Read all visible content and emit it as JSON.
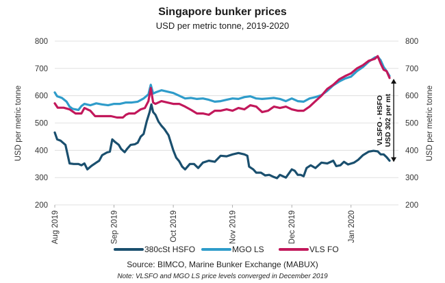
{
  "chart_data": {
    "type": "line",
    "title": "Singapore bunker prices",
    "subtitle": "USD per metric tonne, 2019-2020",
    "ylabel_left": "USD per metric tonne",
    "ylabel_right": "USD per metric tonne",
    "ylim": [
      200,
      800
    ],
    "yticks": [
      "200",
      "300",
      "400",
      "500",
      "600",
      "700",
      "800"
    ],
    "xlim": [
      0,
      5.8
    ],
    "xticks": [
      {
        "label": "Aug 2019",
        "x": 0
      },
      {
        "label": "Sep 2019",
        "x": 1
      },
      {
        "label": "Oct 2019",
        "x": 2
      },
      {
        "label": "Nov 2019",
        "x": 3
      },
      {
        "label": "Dec 2019",
        "x": 4
      },
      {
        "label": "Jan 2020",
        "x": 5
      }
    ],
    "series": [
      {
        "name": "380cSt HSFO",
        "color": "#1a4f6e",
        "points": [
          [
            0,
            465
          ],
          [
            0.04,
            440
          ],
          [
            0.1,
            435
          ],
          [
            0.18,
            420
          ],
          [
            0.25,
            352
          ],
          [
            0.32,
            350
          ],
          [
            0.4,
            350
          ],
          [
            0.45,
            345
          ],
          [
            0.5,
            352
          ],
          [
            0.55,
            330
          ],
          [
            0.62,
            343
          ],
          [
            0.7,
            355
          ],
          [
            0.75,
            362
          ],
          [
            0.8,
            382
          ],
          [
            0.88,
            392
          ],
          [
            0.93,
            395
          ],
          [
            0.97,
            440
          ],
          [
            1.02,
            430
          ],
          [
            1.08,
            420
          ],
          [
            1.12,
            405
          ],
          [
            1.18,
            393
          ],
          [
            1.22,
            405
          ],
          [
            1.28,
            420
          ],
          [
            1.35,
            422
          ],
          [
            1.4,
            428
          ],
          [
            1.45,
            450
          ],
          [
            1.5,
            460
          ],
          [
            1.55,
            505
          ],
          [
            1.6,
            540
          ],
          [
            1.63,
            568
          ],
          [
            1.66,
            540
          ],
          [
            1.7,
            530
          ],
          [
            1.75,
            505
          ],
          [
            1.8,
            490
          ],
          [
            1.85,
            478
          ],
          [
            1.92,
            455
          ],
          [
            2.0,
            400
          ],
          [
            2.05,
            373
          ],
          [
            2.1,
            360
          ],
          [
            2.15,
            340
          ],
          [
            2.2,
            330
          ],
          [
            2.28,
            350
          ],
          [
            2.35,
            350
          ],
          [
            2.42,
            335
          ],
          [
            2.5,
            355
          ],
          [
            2.6,
            362
          ],
          [
            2.7,
            358
          ],
          [
            2.8,
            380
          ],
          [
            2.9,
            378
          ],
          [
            3.0,
            385
          ],
          [
            3.1,
            390
          ],
          [
            3.2,
            385
          ],
          [
            3.25,
            380
          ],
          [
            3.28,
            340
          ],
          [
            3.35,
            330
          ],
          [
            3.4,
            318
          ],
          [
            3.48,
            318
          ],
          [
            3.55,
            308
          ],
          [
            3.62,
            310
          ],
          [
            3.7,
            302
          ],
          [
            3.75,
            298
          ],
          [
            3.8,
            310
          ],
          [
            3.9,
            300
          ],
          [
            4.0,
            330
          ],
          [
            4.05,
            325
          ],
          [
            4.1,
            310
          ],
          [
            4.15,
            310
          ],
          [
            4.2,
            305
          ],
          [
            4.25,
            335
          ],
          [
            4.32,
            345
          ],
          [
            4.4,
            335
          ],
          [
            4.5,
            355
          ],
          [
            4.6,
            352
          ],
          [
            4.7,
            362
          ],
          [
            4.75,
            342
          ],
          [
            4.82,
            345
          ],
          [
            4.88,
            358
          ],
          [
            4.95,
            348
          ],
          [
            5.05,
            355
          ],
          [
            5.12,
            365
          ],
          [
            5.2,
            382
          ],
          [
            5.3,
            395
          ],
          [
            5.38,
            398
          ],
          [
            5.45,
            396
          ],
          [
            5.5,
            385
          ],
          [
            5.55,
            385
          ],
          [
            5.6,
            375
          ],
          [
            5.65,
            362
          ]
        ]
      },
      {
        "name": "MGO LS",
        "color": "#2f9cca",
        "points": [
          [
            0,
            612
          ],
          [
            0.04,
            598
          ],
          [
            0.12,
            592
          ],
          [
            0.2,
            578
          ],
          [
            0.25,
            560
          ],
          [
            0.3,
            552
          ],
          [
            0.4,
            548
          ],
          [
            0.45,
            562
          ],
          [
            0.5,
            570
          ],
          [
            0.6,
            565
          ],
          [
            0.7,
            572
          ],
          [
            0.8,
            568
          ],
          [
            0.9,
            565
          ],
          [
            1.0,
            570
          ],
          [
            1.1,
            570
          ],
          [
            1.2,
            575
          ],
          [
            1.3,
            575
          ],
          [
            1.4,
            578
          ],
          [
            1.5,
            590
          ],
          [
            1.58,
            605
          ],
          [
            1.62,
            640
          ],
          [
            1.66,
            608
          ],
          [
            1.7,
            612
          ],
          [
            1.8,
            620
          ],
          [
            1.9,
            615
          ],
          [
            2.0,
            610
          ],
          [
            2.1,
            600
          ],
          [
            2.2,
            590
          ],
          [
            2.3,
            592
          ],
          [
            2.4,
            588
          ],
          [
            2.5,
            590
          ],
          [
            2.6,
            585
          ],
          [
            2.7,
            578
          ],
          [
            2.8,
            580
          ],
          [
            2.9,
            585
          ],
          [
            3.0,
            590
          ],
          [
            3.1,
            588
          ],
          [
            3.2,
            595
          ],
          [
            3.3,
            598
          ],
          [
            3.4,
            590
          ],
          [
            3.5,
            588
          ],
          [
            3.6,
            590
          ],
          [
            3.7,
            592
          ],
          [
            3.8,
            588
          ],
          [
            3.9,
            580
          ],
          [
            4.0,
            590
          ],
          [
            4.1,
            580
          ],
          [
            4.2,
            578
          ],
          [
            4.3,
            590
          ],
          [
            4.4,
            595
          ],
          [
            4.5,
            602
          ],
          [
            4.6,
            618
          ],
          [
            4.7,
            638
          ],
          [
            4.8,
            652
          ],
          [
            4.9,
            663
          ],
          [
            5.0,
            670
          ],
          [
            5.1,
            690
          ],
          [
            5.2,
            705
          ],
          [
            5.3,
            725
          ],
          [
            5.4,
            740
          ],
          [
            5.45,
            743
          ],
          [
            5.5,
            730
          ],
          [
            5.55,
            705
          ],
          [
            5.6,
            690
          ],
          [
            5.65,
            672
          ]
        ]
      },
      {
        "name": "VLS FO",
        "color": "#c2185b",
        "points": [
          [
            0,
            572
          ],
          [
            0.05,
            556
          ],
          [
            0.15,
            556
          ],
          [
            0.25,
            550
          ],
          [
            0.35,
            535
          ],
          [
            0.45,
            535
          ],
          [
            0.5,
            555
          ],
          [
            0.55,
            550
          ],
          [
            0.6,
            545
          ],
          [
            0.68,
            525
          ],
          [
            0.75,
            525
          ],
          [
            0.85,
            525
          ],
          [
            0.95,
            525
          ],
          [
            1.05,
            520
          ],
          [
            1.15,
            520
          ],
          [
            1.2,
            530
          ],
          [
            1.25,
            535
          ],
          [
            1.35,
            535
          ],
          [
            1.45,
            550
          ],
          [
            1.52,
            555
          ],
          [
            1.58,
            580
          ],
          [
            1.62,
            628
          ],
          [
            1.66,
            575
          ],
          [
            1.7,
            570
          ],
          [
            1.8,
            580
          ],
          [
            1.9,
            575
          ],
          [
            2.0,
            570
          ],
          [
            2.1,
            570
          ],
          [
            2.2,
            560
          ],
          [
            2.3,
            548
          ],
          [
            2.4,
            535
          ],
          [
            2.5,
            535
          ],
          [
            2.6,
            530
          ],
          [
            2.7,
            545
          ],
          [
            2.8,
            545
          ],
          [
            2.9,
            550
          ],
          [
            3.0,
            545
          ],
          [
            3.1,
            555
          ],
          [
            3.2,
            550
          ],
          [
            3.3,
            565
          ],
          [
            3.4,
            560
          ],
          [
            3.5,
            540
          ],
          [
            3.6,
            545
          ],
          [
            3.7,
            560
          ],
          [
            3.8,
            555
          ],
          [
            3.9,
            560
          ],
          [
            4.0,
            550
          ],
          [
            4.1,
            545
          ],
          [
            4.2,
            545
          ],
          [
            4.3,
            560
          ],
          [
            4.4,
            580
          ],
          [
            4.5,
            600
          ],
          [
            4.6,
            625
          ],
          [
            4.7,
            640
          ],
          [
            4.8,
            660
          ],
          [
            4.9,
            672
          ],
          [
            5.0,
            682
          ],
          [
            5.1,
            700
          ],
          [
            5.2,
            712
          ],
          [
            5.3,
            728
          ],
          [
            5.4,
            735
          ],
          [
            5.45,
            745
          ],
          [
            5.5,
            718
          ],
          [
            5.55,
            695
          ],
          [
            5.6,
            690
          ],
          [
            5.65,
            665
          ]
        ]
      }
    ],
    "annotation": {
      "line1": "VLSFO - HSFO",
      "line2": "USD 302 per mt",
      "x": 5.72,
      "from": 357,
      "to": 662
    },
    "legend": [
      "380cSt HSFO",
      "MGO LS",
      "VLS FO"
    ],
    "source": "Source: BIMCO, Marine Bunker Exchange (MABUX)",
    "note": "Note: VLSFO and MGO LS price levels converged in December 2019"
  }
}
